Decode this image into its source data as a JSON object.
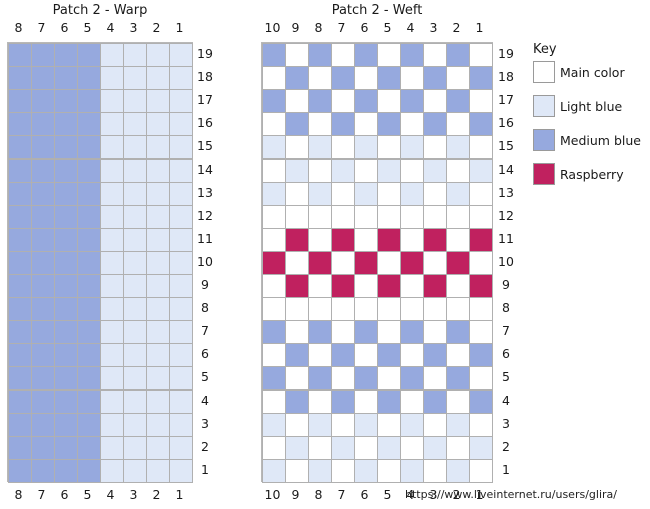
{
  "colors": {
    "main": "#ffffff",
    "light_blue": "#dfe8f7",
    "medium_blue": "#96a9de",
    "raspberry": "#c0215f",
    "grid_line": "#b0b0b0"
  },
  "warp": {
    "title": "Patch 2 - Warp",
    "columns": [
      "8",
      "7",
      "6",
      "5",
      "4",
      "3",
      "2",
      "1"
    ],
    "rows": [
      "19",
      "18",
      "17",
      "16",
      "15",
      "14",
      "13",
      "12",
      "11",
      "10",
      "9",
      "8",
      "7",
      "6",
      "5",
      "4",
      "3",
      "2",
      "1"
    ],
    "cells": [
      [
        "M",
        "M",
        "M",
        "M",
        "L",
        "L",
        "L",
        "L"
      ],
      [
        "M",
        "M",
        "M",
        "M",
        "L",
        "L",
        "L",
        "L"
      ],
      [
        "M",
        "M",
        "M",
        "M",
        "L",
        "L",
        "L",
        "L"
      ],
      [
        "M",
        "M",
        "M",
        "M",
        "L",
        "L",
        "L",
        "L"
      ],
      [
        "M",
        "M",
        "M",
        "M",
        "L",
        "L",
        "L",
        "L"
      ],
      [
        "M",
        "M",
        "M",
        "M",
        "L",
        "L",
        "L",
        "L"
      ],
      [
        "M",
        "M",
        "M",
        "M",
        "L",
        "L",
        "L",
        "L"
      ],
      [
        "M",
        "M",
        "M",
        "M",
        "L",
        "L",
        "L",
        "L"
      ],
      [
        "M",
        "M",
        "M",
        "M",
        "L",
        "L",
        "L",
        "L"
      ],
      [
        "M",
        "M",
        "M",
        "M",
        "L",
        "L",
        "L",
        "L"
      ],
      [
        "M",
        "M",
        "M",
        "M",
        "L",
        "L",
        "L",
        "L"
      ],
      [
        "M",
        "M",
        "M",
        "M",
        "L",
        "L",
        "L",
        "L"
      ],
      [
        "M",
        "M",
        "M",
        "M",
        "L",
        "L",
        "L",
        "L"
      ],
      [
        "M",
        "M",
        "M",
        "M",
        "L",
        "L",
        "L",
        "L"
      ],
      [
        "M",
        "M",
        "M",
        "M",
        "L",
        "L",
        "L",
        "L"
      ],
      [
        "M",
        "M",
        "M",
        "M",
        "L",
        "L",
        "L",
        "L"
      ],
      [
        "M",
        "M",
        "M",
        "M",
        "L",
        "L",
        "L",
        "L"
      ],
      [
        "M",
        "M",
        "M",
        "M",
        "L",
        "L",
        "L",
        "L"
      ],
      [
        "M",
        "M",
        "M",
        "M",
        "L",
        "L",
        "L",
        "L"
      ]
    ]
  },
  "weft": {
    "title": "Patch 2 - Weft",
    "columns": [
      "10",
      "9",
      "8",
      "7",
      "6",
      "5",
      "4",
      "3",
      "2",
      "1"
    ],
    "rows": [
      "19",
      "18",
      "17",
      "16",
      "15",
      "14",
      "13",
      "12",
      "11",
      "10",
      "9",
      "8",
      "7",
      "6",
      "5",
      "4",
      "3",
      "2",
      "1"
    ],
    "cells": [
      [
        "M",
        "W",
        "M",
        "W",
        "M",
        "W",
        "M",
        "W",
        "M",
        "W"
      ],
      [
        "W",
        "M",
        "W",
        "M",
        "W",
        "M",
        "W",
        "M",
        "W",
        "M"
      ],
      [
        "M",
        "W",
        "M",
        "W",
        "M",
        "W",
        "M",
        "W",
        "M",
        "W"
      ],
      [
        "W",
        "M",
        "W",
        "M",
        "W",
        "M",
        "W",
        "M",
        "W",
        "M"
      ],
      [
        "L",
        "W",
        "L",
        "W",
        "L",
        "W",
        "L",
        "W",
        "L",
        "W"
      ],
      [
        "W",
        "L",
        "W",
        "L",
        "W",
        "L",
        "W",
        "L",
        "W",
        "L"
      ],
      [
        "L",
        "W",
        "L",
        "W",
        "L",
        "W",
        "L",
        "W",
        "L",
        "W"
      ],
      [
        "W",
        "W",
        "W",
        "W",
        "W",
        "W",
        "W",
        "W",
        "W",
        "W"
      ],
      [
        "W",
        "R",
        "W",
        "R",
        "W",
        "R",
        "W",
        "R",
        "W",
        "R"
      ],
      [
        "R",
        "W",
        "R",
        "W",
        "R",
        "W",
        "R",
        "W",
        "R",
        "W"
      ],
      [
        "W",
        "R",
        "W",
        "R",
        "W",
        "R",
        "W",
        "R",
        "W",
        "R"
      ],
      [
        "W",
        "W",
        "W",
        "W",
        "W",
        "W",
        "W",
        "W",
        "W",
        "W"
      ],
      [
        "M",
        "W",
        "M",
        "W",
        "M",
        "W",
        "M",
        "W",
        "M",
        "W"
      ],
      [
        "W",
        "M",
        "W",
        "M",
        "W",
        "M",
        "W",
        "M",
        "W",
        "M"
      ],
      [
        "M",
        "W",
        "M",
        "W",
        "M",
        "W",
        "M",
        "W",
        "M",
        "W"
      ],
      [
        "W",
        "M",
        "W",
        "M",
        "W",
        "M",
        "W",
        "M",
        "W",
        "M"
      ],
      [
        "L",
        "W",
        "L",
        "W",
        "L",
        "W",
        "L",
        "W",
        "L",
        "W"
      ],
      [
        "W",
        "L",
        "W",
        "L",
        "W",
        "L",
        "W",
        "L",
        "W",
        "L"
      ],
      [
        "L",
        "W",
        "L",
        "W",
        "L",
        "W",
        "L",
        "W",
        "L",
        "W"
      ]
    ]
  },
  "key": {
    "title": "Key",
    "items": [
      {
        "code": "W",
        "label": "Main color",
        "color": "#ffffff"
      },
      {
        "code": "L",
        "label": "Light blue",
        "color": "#dfe8f7"
      },
      {
        "code": "M",
        "label": "Medium blue",
        "color": "#96a9de"
      },
      {
        "code": "R",
        "label": "Raspberry",
        "color": "#c0215f"
      }
    ]
  },
  "watermark": "https://www.liveinternet.ru/users/glira/"
}
